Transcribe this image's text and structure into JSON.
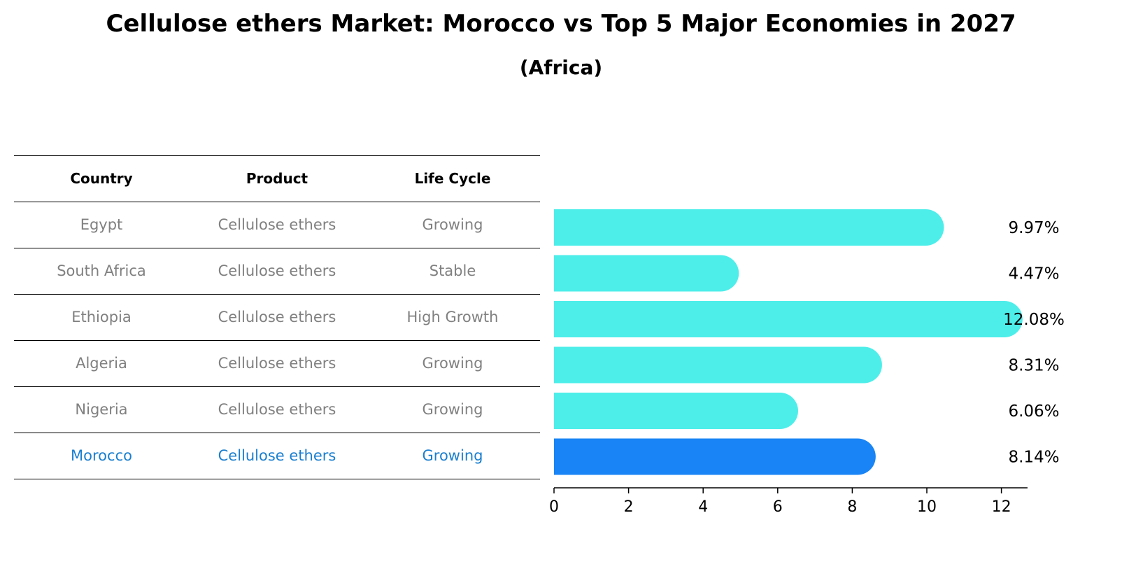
{
  "title": "Cellulose ethers Market: Morocco vs Top 5 Major Economies in 2027",
  "subtitle": "(Africa)",
  "table": {
    "headers": [
      "Country",
      "Product",
      "Life Cycle"
    ],
    "rows": [
      [
        "Egypt",
        "Cellulose ethers",
        "Growing"
      ],
      [
        "South Africa",
        "Cellulose ethers",
        "Stable"
      ],
      [
        "Ethiopia",
        "Cellulose ethers",
        "High Growth"
      ],
      [
        "Algeria",
        "Cellulose ethers",
        "Growing"
      ],
      [
        "Nigeria",
        "Cellulose ethers",
        "Growing"
      ],
      [
        "Morocco",
        "Cellulose ethers",
        "Growing"
      ]
    ],
    "highlight_row": 5
  },
  "colors": {
    "bar": "#4deeea",
    "highlight_bar": "#1984f5",
    "highlight_text": "#1a7fcf",
    "muted_text": "#808080"
  },
  "chart_data": {
    "type": "bar",
    "orientation": "horizontal",
    "categories": [
      "Egypt",
      "South Africa",
      "Ethiopia",
      "Algeria",
      "Nigeria",
      "Morocco"
    ],
    "values": [
      9.97,
      4.47,
      12.08,
      8.31,
      6.06,
      8.14
    ],
    "value_labels": [
      "9.97%",
      "4.47%",
      "12.08%",
      "8.31%",
      "6.06%",
      "8.14%"
    ],
    "highlight_index": 5,
    "xlim": [
      0,
      12.7
    ],
    "xticks": [
      0,
      2,
      4,
      6,
      8,
      10,
      12
    ],
    "grid": false
  }
}
